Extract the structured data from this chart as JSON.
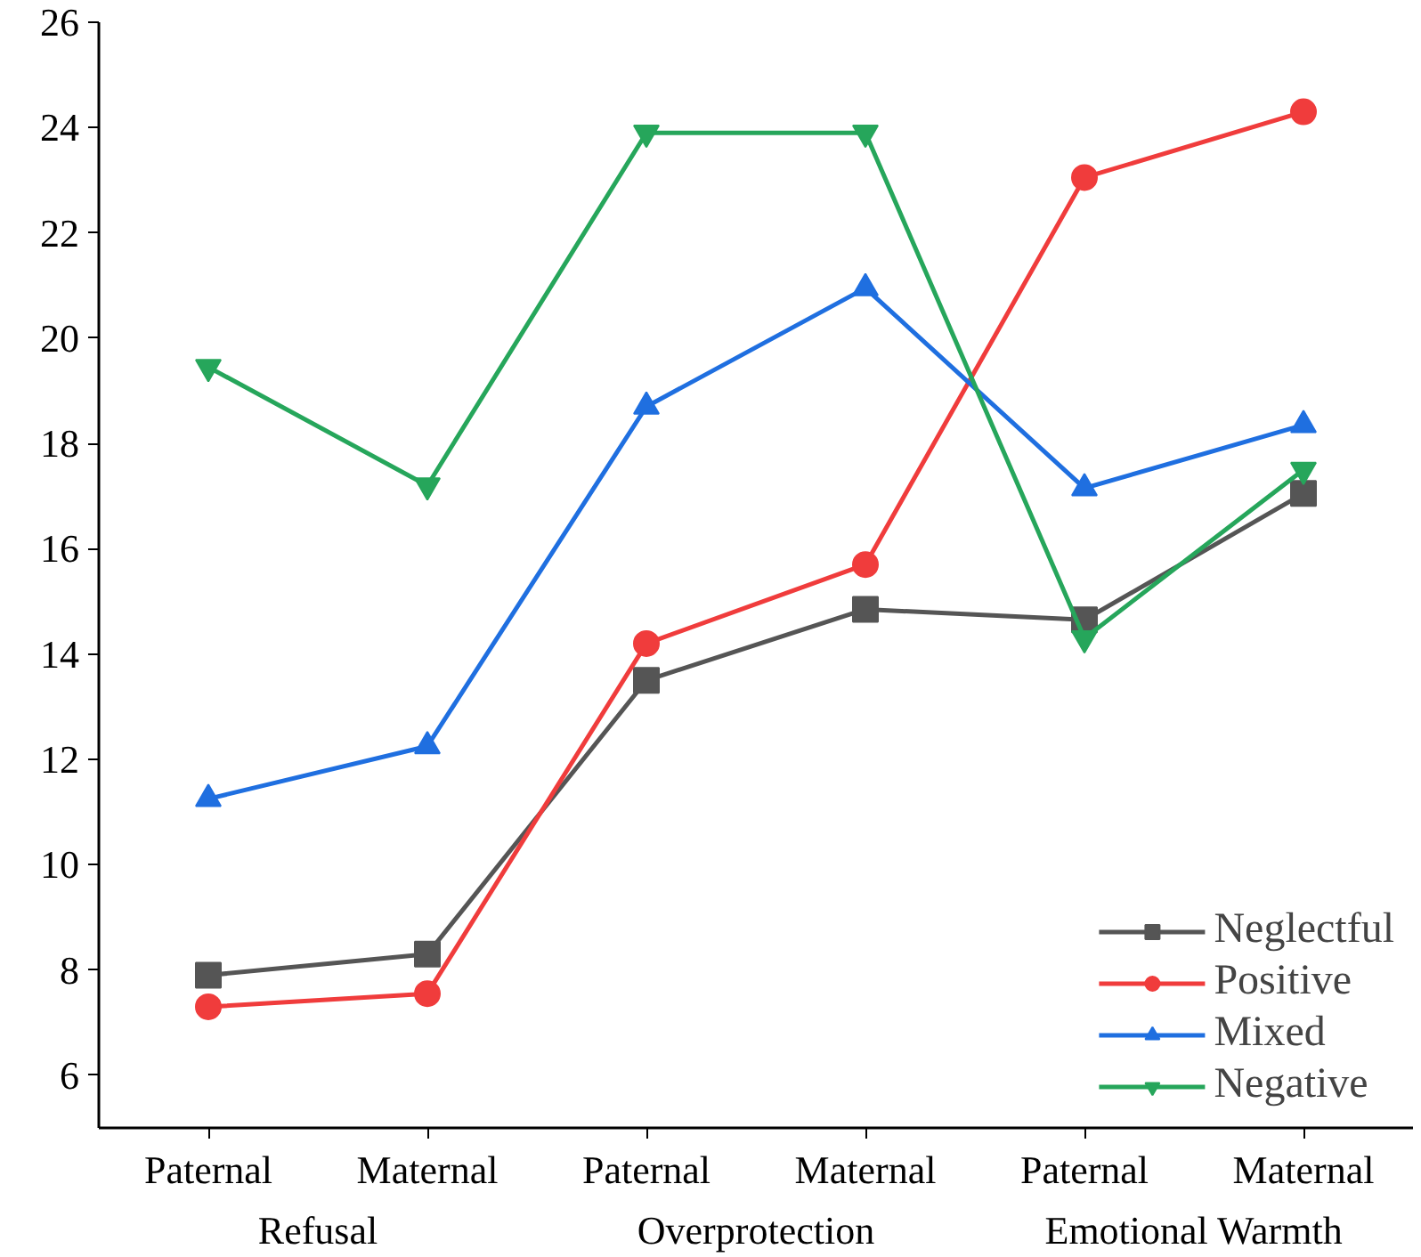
{
  "chart_data": {
    "type": "line",
    "categories": [
      "Paternal",
      "Maternal",
      "Paternal",
      "Maternal",
      "Paternal",
      "Maternal"
    ],
    "annotations": [
      "Refusal",
      "Overprotection",
      "Emotional Warmth"
    ],
    "ylim": [
      5,
      26
    ],
    "yticks": [
      6,
      8,
      10,
      12,
      14,
      16,
      18,
      20,
      22,
      24,
      26
    ],
    "grid": false,
    "legend": "bottom right",
    "line_style": "solid",
    "series": [
      {
        "name": "Neglectful",
        "color": "#555555",
        "marker": "square",
        "values": [
          7.9,
          8.3,
          13.5,
          14.85,
          14.65,
          17.05
        ]
      },
      {
        "name": "Positive",
        "color": "#f03c3c",
        "marker": "circle",
        "values": [
          7.3,
          7.55,
          14.2,
          15.7,
          23.05,
          24.3
        ]
      },
      {
        "name": "Mixed",
        "color": "#1f6fe0",
        "marker": "triangle",
        "values": [
          11.25,
          12.25,
          18.7,
          20.95,
          17.15,
          18.35
        ]
      },
      {
        "name": "Negative",
        "color": "#26a65b",
        "marker": "triangle",
        "values": [
          19.45,
          17.2,
          23.9,
          23.9,
          14.3,
          17.5
        ]
      }
    ]
  }
}
